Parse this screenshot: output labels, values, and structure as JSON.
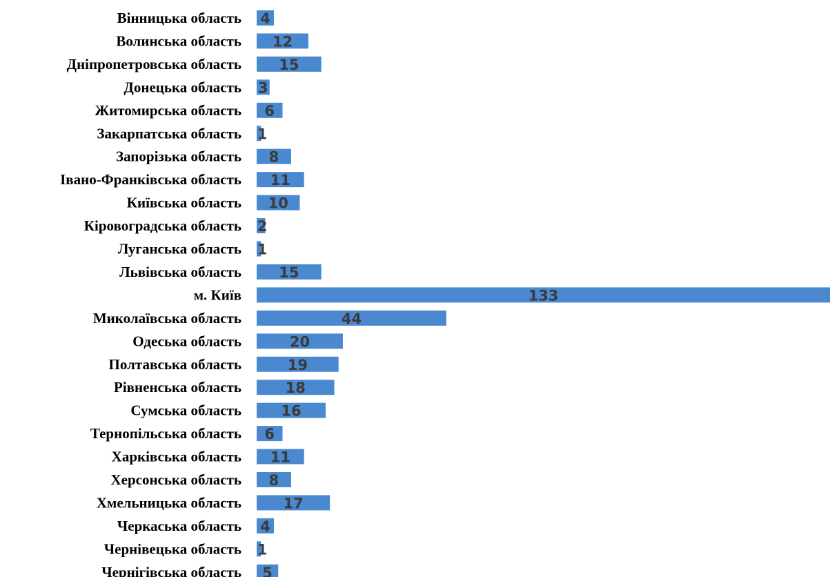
{
  "chart_data": {
    "type": "bar",
    "orientation": "horizontal",
    "bar_color": "#4a89d0",
    "categories": [
      "Вінницька область",
      "Волинська область",
      "Дніпропетровська область",
      "Донецька область",
      "Житомирська область",
      "Закарпатська область",
      "Запорізька область",
      "Івано-Франківська область",
      "Київська область",
      "Кіровоградська область",
      "Луганська область",
      "Львівська область",
      "м. Київ",
      "Миколаївська область",
      "Одеська область",
      "Полтавська область",
      "Рівненська область",
      "Сумська область",
      "Тернопільська область",
      "Харківська область",
      "Херсонська область",
      "Хмельницька область",
      "Черкаська область",
      "Чернівецька область",
      "Чернігівська область"
    ],
    "values": [
      4,
      12,
      15,
      3,
      6,
      1,
      8,
      11,
      10,
      2,
      1,
      15,
      133,
      44,
      20,
      19,
      18,
      16,
      6,
      11,
      8,
      17,
      4,
      1,
      5
    ],
    "xlim": [
      0,
      133
    ],
    "grid": false,
    "legend": "none"
  }
}
